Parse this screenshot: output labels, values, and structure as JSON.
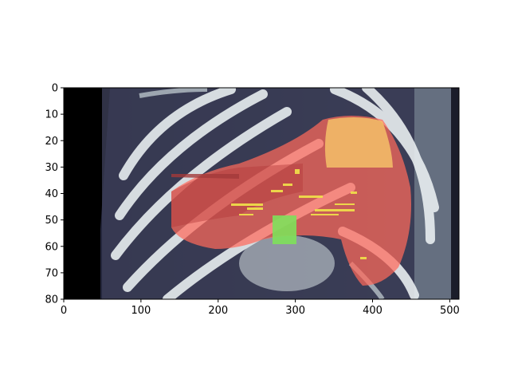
{
  "figure": {
    "x_axis": {
      "range": [
        0,
        512
      ],
      "ticks": [
        0,
        100,
        200,
        300,
        400,
        500
      ],
      "tick_labels": [
        "0",
        "100",
        "200",
        "300",
        "400",
        "500"
      ]
    },
    "y_axis": {
      "range": [
        80,
        0
      ],
      "inverted": true,
      "ticks": [
        0,
        10,
        20,
        30,
        40,
        50,
        60,
        70,
        80
      ],
      "tick_labels": [
        "0",
        "10",
        "20",
        "30",
        "40",
        "50",
        "60",
        "70",
        "80"
      ]
    },
    "image": {
      "description_type": "CT scan slice with segmentation overlays",
      "overlay_colors": {
        "large_region": "#ff6a5a",
        "upper_right_region": "#f5c068",
        "small_region": "#7ee05a",
        "vessels": "#f2e34a"
      }
    }
  }
}
